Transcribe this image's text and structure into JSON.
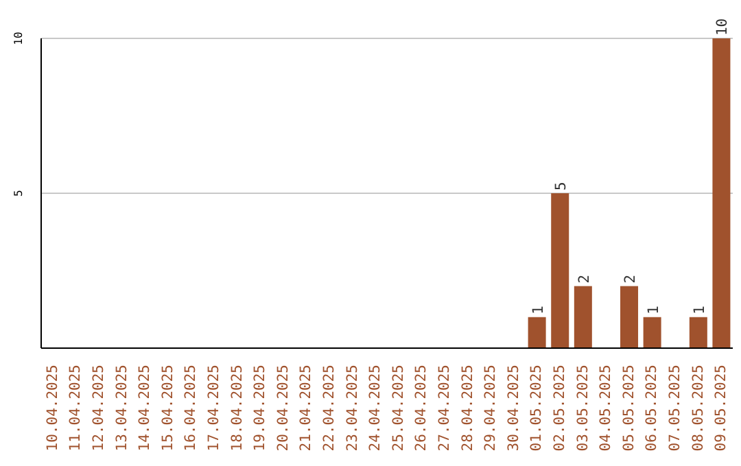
{
  "chart_data": {
    "type": "bar",
    "categories": [
      "10.04.2025",
      "11.04.2025",
      "12.04.2025",
      "13.04.2025",
      "14.04.2025",
      "15.04.2025",
      "16.04.2025",
      "17.04.2025",
      "18.04.2025",
      "19.04.2025",
      "20.04.2025",
      "21.04.2025",
      "22.04.2025",
      "23.04.2025",
      "24.04.2025",
      "25.04.2025",
      "26.04.2025",
      "27.04.2025",
      "28.04.2025",
      "29.04.2025",
      "30.04.2025",
      "01.05.2025",
      "02.05.2025",
      "03.05.2025",
      "04.05.2025",
      "05.05.2025",
      "06.05.2025",
      "07.05.2025",
      "08.05.2025",
      "09.05.2025"
    ],
    "values": [
      0,
      0,
      0,
      0,
      0,
      0,
      0,
      0,
      0,
      0,
      0,
      0,
      0,
      0,
      0,
      0,
      0,
      0,
      0,
      0,
      0,
      1,
      5,
      2,
      0,
      2,
      1,
      0,
      1,
      10
    ],
    "value_labels": [
      null,
      null,
      null,
      null,
      null,
      null,
      null,
      null,
      null,
      null,
      null,
      null,
      null,
      null,
      null,
      null,
      null,
      null,
      null,
      null,
      null,
      "1",
      "5",
      "2",
      null,
      "2",
      "1",
      null,
      "1",
      "10"
    ],
    "color": "#a0522d",
    "ylim": [
      0,
      10
    ],
    "yticks": [
      5,
      10
    ],
    "grid": "y"
  }
}
